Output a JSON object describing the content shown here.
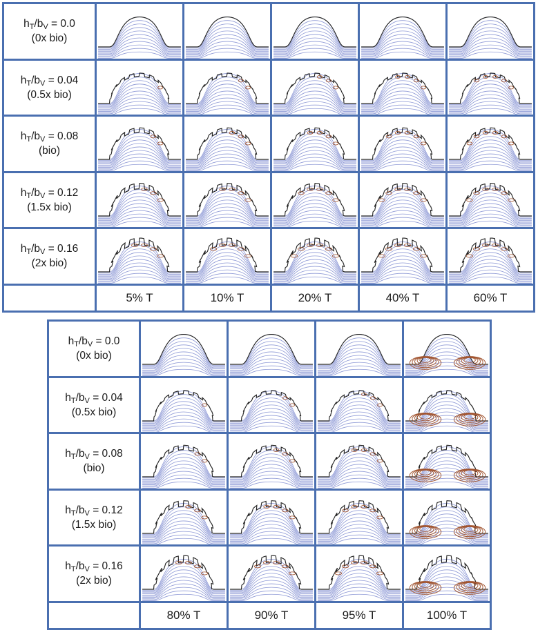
{
  "top_table": {
    "rows": [
      {
        "ratio": "= 0.0",
        "factor": "(0x bio)"
      },
      {
        "ratio": "= 0.04",
        "factor": "(0.5x bio)"
      },
      {
        "ratio": "= 0.08",
        "factor": "(bio)"
      },
      {
        "ratio": "= 0.12",
        "factor": "(1.5x bio)"
      },
      {
        "ratio": "= 0.16",
        "factor": "(2x bio)"
      }
    ],
    "columns": [
      "5% T",
      "10% T",
      "20% T",
      "40% T",
      "60% T"
    ]
  },
  "bottom_table": {
    "rows": [
      {
        "ratio": "= 0.0",
        "factor": "(0x bio)"
      },
      {
        "ratio": "= 0.04",
        "factor": "(0.5x bio)"
      },
      {
        "ratio": "= 0.08",
        "factor": "(bio)"
      },
      {
        "ratio": "= 0.12",
        "factor": "(1.5x bio)"
      },
      {
        "ratio": "= 0.16",
        "factor": "(2x bio)"
      }
    ],
    "columns": [
      "80% T",
      "90% T",
      "95% T",
      "100% T"
    ]
  },
  "label_symbols": {
    "h": "h",
    "h_sub": "T",
    "slash": "/",
    "b": "b",
    "b_sub": "V"
  },
  "colors": {
    "grid_border": "#4a6fb0",
    "streamline": "#8f9ad6",
    "vortex": "#a0522d",
    "outline": "#222222"
  }
}
